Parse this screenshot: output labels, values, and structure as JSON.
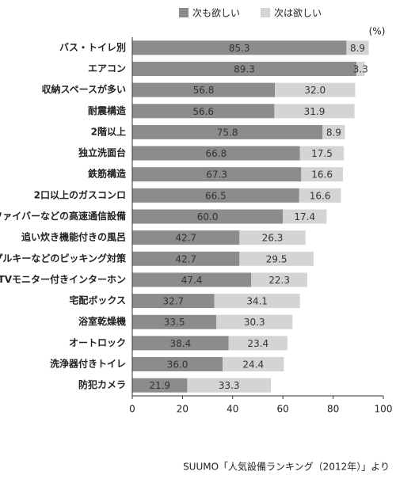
{
  "chart_data": {
    "type": "stacked-barh",
    "categories": [
      "バス・トイレ別",
      "エアコン",
      "収納スペースが多い",
      "耐震構造",
      "2階以上",
      "独立洗面台",
      "鉄筋構造",
      "2口以上のガスコンロ",
      "光ファイバーなどの高速通信設備",
      "追い炊き機能付きの風呂",
      "ティンプルキーなどのピッキング対策",
      "TVモニター付きインターホン",
      "宅配ボックス",
      "浴室乾燥機",
      "オートロック",
      "洗浄器付きトイレ",
      "防犯カメラ"
    ],
    "series": [
      {
        "name": "次も欲しい",
        "color": "#8c8c8c",
        "values": [
          85.3,
          89.3,
          56.8,
          56.6,
          75.8,
          66.8,
          67.3,
          66.5,
          60.0,
          42.7,
          42.7,
          47.4,
          32.7,
          33.5,
          38.4,
          36.0,
          21.9
        ],
        "value_labels": [
          "85.3",
          "89.3",
          "56.8",
          "56.6",
          "75.8",
          "66.8",
          "67.3",
          "66.5",
          "60.0",
          "42.7",
          "42.7",
          "47.4",
          "32.7",
          "33.5",
          "38.4",
          "36.0",
          "21.9"
        ]
      },
      {
        "name": "次は欲しい",
        "color": "#d4d4d4",
        "values": [
          8.9,
          3.3,
          32.0,
          31.9,
          8.9,
          17.5,
          16.6,
          16.6,
          17.4,
          26.3,
          29.5,
          22.3,
          34.1,
          30.3,
          23.4,
          24.4,
          33.3
        ],
        "value_labels": [
          "8.9",
          "3.3",
          "32.0",
          "31.9",
          "8.9",
          "17.5",
          "16.6",
          "16.6",
          "17.4",
          "26.3",
          "29.5",
          "22.3",
          "34.1",
          "30.3",
          "23.4",
          "24.4",
          "33.3"
        ]
      }
    ],
    "xlim": [
      0,
      100
    ],
    "xticks": [
      0,
      20,
      40,
      60,
      80,
      100
    ],
    "xlabel": "(%)",
    "source": "SUUMO「人気設備ランキング（2012年）」より"
  }
}
